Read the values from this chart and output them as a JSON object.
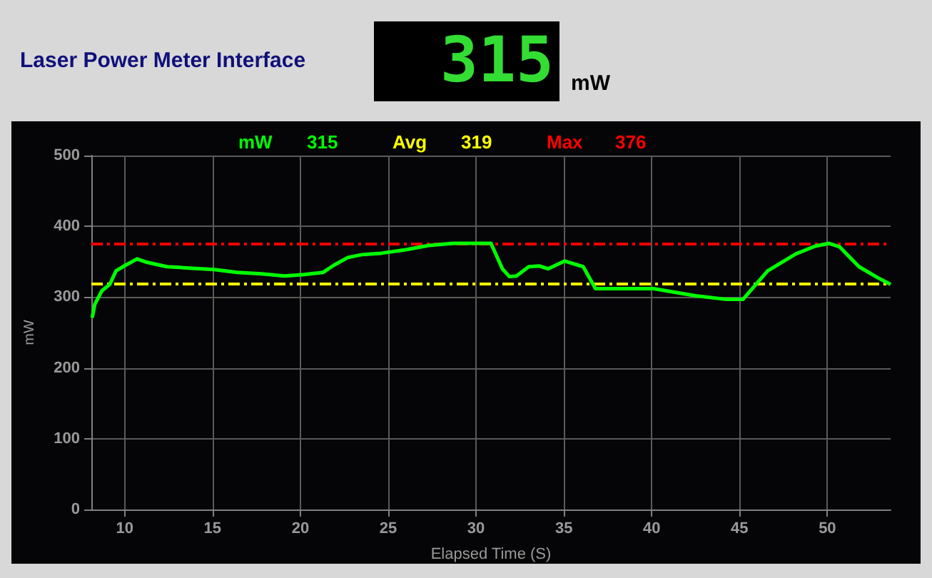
{
  "chart_data": {
    "type": "line",
    "title": "Laser Power Meter Interface",
    "xlabel": "Elapsed Time (S)",
    "ylabel": "mW",
    "annotations": [
      "315",
      "mW",
      "315",
      "319",
      "376"
    ],
    "legend": "top",
    "grid": true,
    "marker": "none",
    "xlim": [
      8.1,
      53.6
    ],
    "xticks": [
      10,
      15,
      20,
      25,
      30,
      35,
      40,
      45,
      50
    ],
    "ylim": [
      0,
      500
    ],
    "yticks": [
      0,
      100,
      200,
      300,
      400,
      500
    ],
    "ref_lines": [
      {
        "axis": "y",
        "value": 319,
        "label": "Avg",
        "color": "#ffff00",
        "line_style": "dashed"
      },
      {
        "axis": "y",
        "value": 376,
        "label": "Max",
        "color": "#ff0000",
        "line_style": "dashed"
      }
    ],
    "series": [
      {
        "name": "mW",
        "color": "#00ff00",
        "line_style": "solid",
        "x": [
          8.15,
          8.3,
          8.7,
          9.15,
          9.5,
          9.97,
          10.7,
          11.3,
          12.4,
          13.7,
          15.1,
          16.4,
          17.8,
          19.1,
          20.2,
          21.3,
          21.9,
          22.7,
          23.5,
          24.6,
          26,
          27.3,
          28.7,
          30.85,
          31.5,
          31.9,
          32.3,
          33,
          33.6,
          34.1,
          35.05,
          36.1,
          36.8,
          40.1,
          42.5,
          44.2,
          45.2,
          46.6,
          48.2,
          49.3,
          50.1,
          50.7,
          51.8,
          52.9,
          53.6
        ],
        "values": [
          271,
          290,
          309,
          318,
          337,
          344,
          354,
          349,
          343,
          341,
          339,
          335,
          333,
          330,
          332,
          335,
          345,
          356,
          360,
          362,
          367,
          373,
          376,
          376,
          340,
          329,
          330,
          343,
          344,
          340,
          351,
          343,
          312,
          312,
          302,
          297,
          297,
          337,
          361,
          372,
          376,
          371,
          343,
          327,
          318
        ]
      }
    ]
  }
}
